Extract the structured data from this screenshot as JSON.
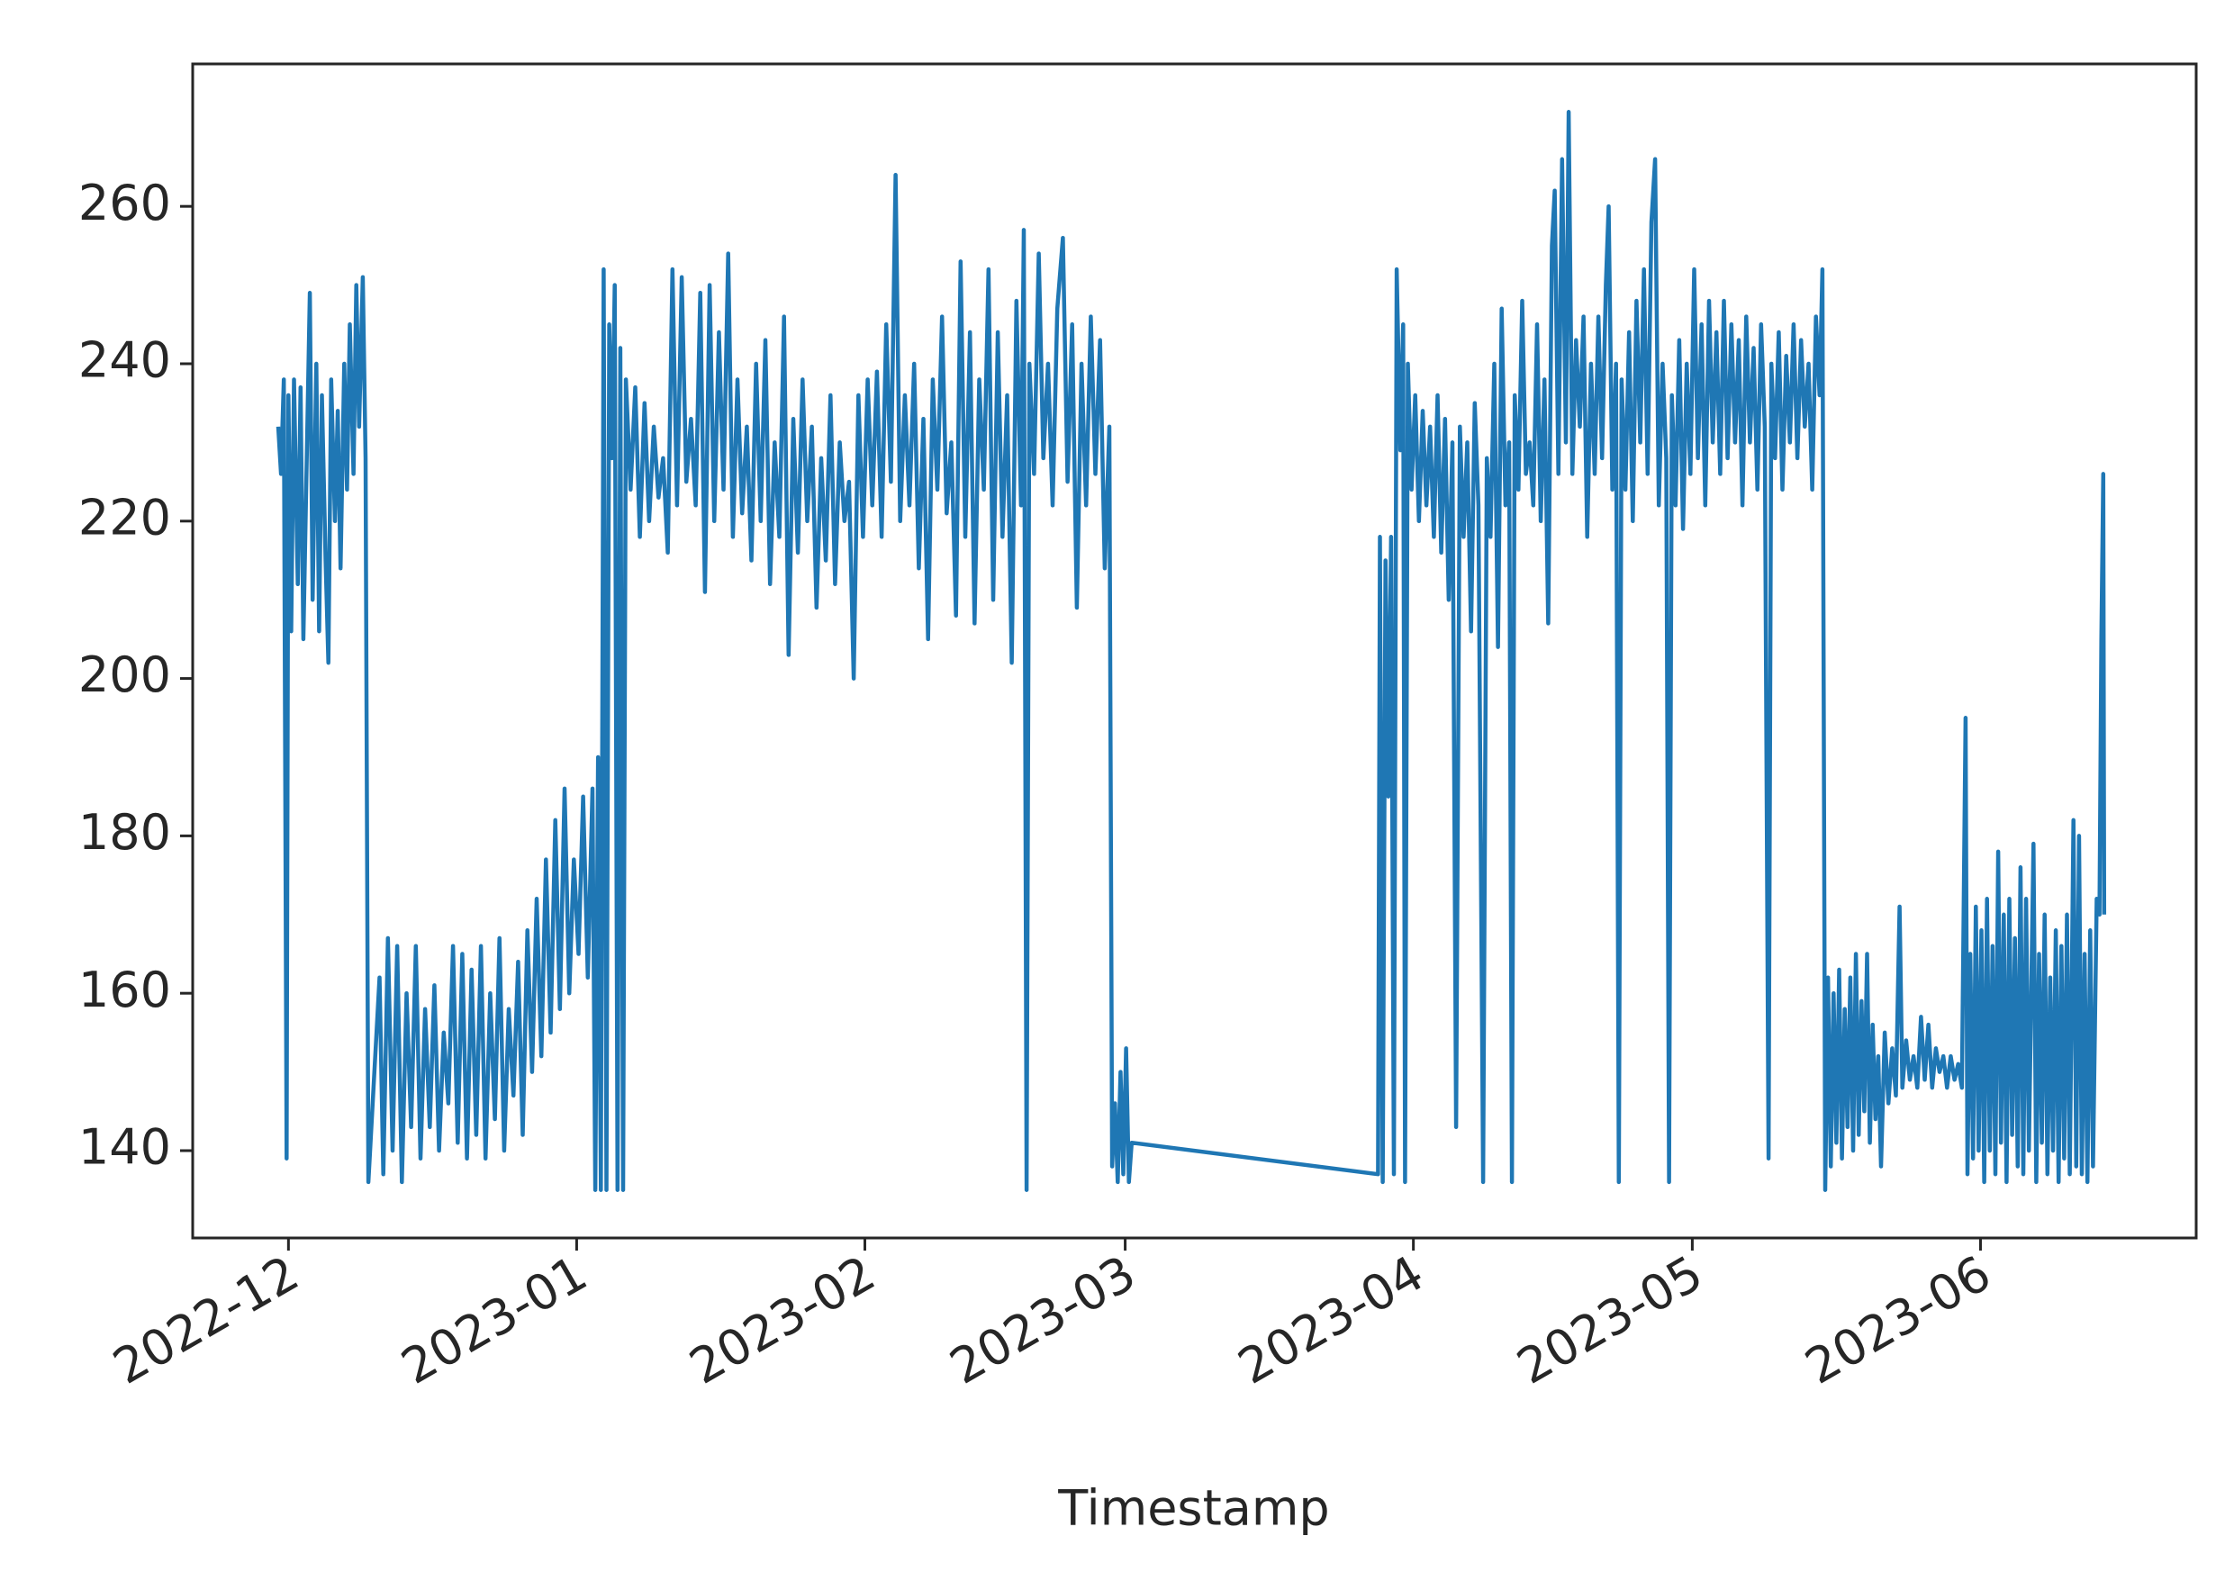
{
  "chart_data": {
    "type": "line",
    "x_label": "Timestamp",
    "color": "#1f77b4",
    "xlim": [
      19316.7,
      19532.2
    ],
    "ylim": [
      128.9,
      278.1
    ],
    "xticks": [
      {
        "value": 19327,
        "label": "2022-12"
      },
      {
        "value": 19358,
        "label": "2023-01"
      },
      {
        "value": 19389,
        "label": "2023-02"
      },
      {
        "value": 19417,
        "label": "2023-03"
      },
      {
        "value": 19448,
        "label": "2023-04"
      },
      {
        "value": 19478,
        "label": "2023-05"
      },
      {
        "value": 19509,
        "label": "2023-06"
      }
    ],
    "yticks": [
      140,
      160,
      180,
      200,
      220,
      240,
      260
    ],
    "x": [
      19325.9,
      19326.2,
      19326.5,
      19326.8,
      19327,
      19327.3,
      19327.6,
      19328,
      19328.3,
      19328.6,
      19329,
      19329.3,
      19329.6,
      19330,
      19330.3,
      19330.6,
      19331,
      19331.3,
      19331.6,
      19332,
      19332.3,
      19332.6,
      19333,
      19333.3,
      19333.6,
      19334,
      19334.3,
      19334.6,
      19335,
      19335.3,
      19335.6,
      19336.8,
      19337.2,
      19337.7,
      19338.2,
      19338.7,
      19339.2,
      19339.7,
      19340.2,
      19340.7,
      19341.2,
      19341.7,
      19342.2,
      19342.7,
      19343.2,
      19343.7,
      19344.2,
      19344.7,
      19345.2,
      19345.7,
      19346.2,
      19346.7,
      19347.2,
      19347.7,
      19348.2,
      19348.7,
      19349.2,
      19349.7,
      19350.2,
      19350.7,
      19351.2,
      19351.7,
      19352.2,
      19352.7,
      19353.2,
      19353.7,
      19354.2,
      19354.7,
      19355.2,
      19355.7,
      19356.2,
      19356.7,
      19357.2,
      19357.7,
      19358.2,
      19358.7,
      19359.2,
      19359.7,
      19360.0,
      19360.3,
      19360.6,
      19360.9,
      19361.2,
      19361.5,
      19361.8,
      19362.1,
      19362.4,
      19362.7,
      19363,
      19363.3,
      19363.8,
      19364.3,
      19364.8,
      19365.3,
      19365.8,
      19366.3,
      19366.8,
      19367.3,
      19367.8,
      19368.3,
      19368.8,
      19369.3,
      19369.8,
      19370.3,
      19370.8,
      19371.3,
      19371.8,
      19372.3,
      19372.8,
      19373.3,
      19373.8,
      19374.3,
      19374.8,
      19375.3,
      19375.8,
      19376.3,
      19376.8,
      19377.3,
      19377.8,
      19378.3,
      19378.8,
      19379.3,
      19379.8,
      19380.3,
      19380.8,
      19381.3,
      19381.8,
      19382.3,
      19382.8,
      19383.3,
      19383.8,
      19384.3,
      19384.8,
      19385.3,
      19385.8,
      19386.3,
      19386.8,
      19387.3,
      19387.8,
      19388.3,
      19388.8,
      19389.3,
      19389.8,
      19390.3,
      19390.8,
      19391.3,
      19391.8,
      19392.3,
      19392.8,
      19393.3,
      19393.8,
      19394.3,
      19394.8,
      19395.3,
      19395.8,
      19396.3,
      19396.8,
      19397.3,
      19397.8,
      19398.3,
      19398.8,
      19399.3,
      19399.8,
      19400.3,
      19400.8,
      19401.3,
      19401.8,
      19402.3,
      19402.8,
      19403.3,
      19403.8,
      19404.3,
      19404.8,
      19405.3,
      19405.8,
      19406.1,
      19406.4,
      19406.7,
      19407.2,
      19407.7,
      19408.2,
      19408.7,
      19409.2,
      19409.7,
      19410.3,
      19410.8,
      19411.3,
      19411.8,
      19412.3,
      19412.8,
      19413.3,
      19413.8,
      19414.3,
      19414.8,
      19415.3,
      19415.6,
      19415.9,
      19416.2,
      19416.5,
      19416.8,
      19417.1,
      19417.4,
      19417.7,
      19444.2,
      19444.4,
      19444.7,
      19445.0,
      19445.3,
      19445.6,
      19445.9,
      19446.2,
      19446.6,
      19446.9,
      19447.1,
      19447.4,
      19447.8,
      19448.2,
      19448.6,
      19449,
      19449.4,
      19449.8,
      19450.2,
      19450.6,
      19451,
      19451.4,
      19451.8,
      19452.2,
      19452.6,
      19453,
      19453.4,
      19453.8,
      19454.2,
      19454.6,
      19455,
      19455.5,
      19455.9,
      19456.3,
      19456.7,
      19457.1,
      19457.5,
      19457.9,
      19458.3,
      19458.6,
      19458.9,
      19459.3,
      19459.7,
      19460.1,
      19460.5,
      19460.9,
      19461.3,
      19461.7,
      19462.1,
      19462.5,
      19462.9,
      19463.2,
      19463.6,
      19464.0,
      19464.4,
      19464.7,
      19465.1,
      19465.5,
      19465.9,
      19466.3,
      19466.7,
      19467.1,
      19467.5,
      19467.9,
      19468.3,
      19468.7,
      19469.0,
      19469.4,
      19469.8,
      19470.1,
      19470.4,
      19470.8,
      19471.2,
      19471.6,
      19472,
      19472.4,
      19472.8,
      19473.2,
      19473.6,
      19474.0,
      19474.4,
      19474.8,
      19475.2,
      19475.5,
      19475.8,
      19476.2,
      19476.6,
      19477,
      19477.4,
      19477.8,
      19478.2,
      19478.6,
      19479,
      19479.4,
      19479.8,
      19480.2,
      19480.6,
      19481,
      19481.4,
      19481.8,
      19482.2,
      19482.6,
      19483,
      19483.4,
      19483.8,
      19484.2,
      19484.6,
      19485,
      19485.4,
      19485.8,
      19486.2,
      19486.5,
      19486.9,
      19487.3,
      19487.7,
      19488.1,
      19488.5,
      19488.9,
      19489.3,
      19489.7,
      19490.1,
      19490.5,
      19490.9,
      19491.3,
      19491.7,
      19492.0,
      19492.3,
      19492.6,
      19492.9,
      19493.2,
      19493.5,
      19493.8,
      19494.1,
      19494.4,
      19494.7,
      19495,
      19495.3,
      19495.6,
      19495.9,
      19496.2,
      19496.5,
      19496.8,
      19497.1,
      19497.4,
      19497.7,
      19498,
      19498.3,
      19498.7,
      19499.1,
      19499.5,
      19499.9,
      19500.3,
      19500.6,
      19501,
      19501.4,
      19501.8,
      19502.2,
      19502.6,
      19503,
      19503.4,
      19503.8,
      19504.2,
      19504.6,
      19505,
      19505.4,
      19505.8,
      19506.2,
      19506.6,
      19507,
      19507.4,
      19507.6,
      19507.9,
      19508.2,
      19508.5,
      19508.8,
      19509.1,
      19509.4,
      19509.7,
      19510,
      19510.3,
      19510.6,
      19510.9,
      19511.2,
      19511.5,
      19511.8,
      19512.1,
      19512.4,
      19512.7,
      19513,
      19513.3,
      19513.6,
      19513.9,
      19514.2,
      19514.7,
      19515,
      19515.3,
      19515.6,
      19515.9,
      19516.2,
      19516.5,
      19516.8,
      19517.1,
      19517.4,
      19517.7,
      19518,
      19518.3,
      19518.6,
      19519,
      19519.3,
      19519.6,
      19519.9,
      19520.2,
      19520.5,
      19520.8,
      19521.1,
      19521.5,
      19521.8,
      19522.0,
      19522.2,
      19522.3
    ],
    "values": [
      232,
      226,
      238,
      139,
      236,
      206,
      238,
      212,
      237,
      205,
      230,
      249,
      210,
      240,
      206,
      236,
      215,
      202,
      238,
      220,
      234,
      214,
      240,
      224,
      245,
      226,
      250,
      232,
      251,
      228,
      136,
      162,
      137,
      167,
      140,
      166,
      136,
      160,
      143,
      166,
      139,
      158,
      143,
      161,
      140,
      155,
      146,
      166,
      141,
      165,
      139,
      163,
      142,
      166,
      139,
      160,
      144,
      167,
      140,
      158,
      147,
      164,
      142,
      168,
      150,
      172,
      152,
      177,
      155,
      182,
      158,
      186,
      160,
      177,
      165,
      185,
      162,
      186,
      135,
      190,
      135,
      252,
      135,
      245,
      228,
      250,
      135,
      242,
      135,
      238,
      224,
      237,
      218,
      235,
      220,
      232,
      223,
      228,
      216,
      252,
      222,
      251,
      225,
      233,
      222,
      249,
      211,
      250,
      220,
      244,
      224,
      254,
      218,
      238,
      221,
      232,
      215,
      240,
      220,
      243,
      212,
      230,
      218,
      246,
      203,
      233,
      216,
      238,
      220,
      232,
      209,
      228,
      215,
      236,
      212,
      230,
      220,
      225,
      200,
      236,
      218,
      238,
      222,
      239,
      218,
      245,
      225,
      264,
      220,
      236,
      222,
      240,
      214,
      233,
      205,
      238,
      224,
      246,
      221,
      230,
      208,
      253,
      218,
      244,
      207,
      238,
      224,
      252,
      210,
      244,
      218,
      236,
      202,
      248,
      222,
      257,
      135,
      240,
      226,
      254,
      228,
      240,
      222,
      247,
      256,
      225,
      245,
      209,
      240,
      222,
      246,
      226,
      243,
      214,
      232,
      138,
      146,
      136,
      150,
      137,
      153,
      136,
      141,
      137,
      218,
      136,
      215,
      185,
      218,
      137,
      252,
      229,
      245,
      136,
      240,
      224,
      236,
      220,
      234,
      222,
      232,
      218,
      236,
      216,
      233,
      210,
      230,
      143,
      232,
      218,
      230,
      206,
      235,
      222,
      136,
      228,
      218,
      240,
      204,
      247,
      222,
      230,
      136,
      236,
      224,
      248,
      226,
      230,
      222,
      245,
      220,
      238,
      207,
      255,
      262,
      226,
      266,
      230,
      272,
      226,
      243,
      232,
      246,
      218,
      240,
      226,
      246,
      228,
      250,
      260,
      224,
      240,
      136,
      238,
      224,
      244,
      220,
      248,
      230,
      252,
      226,
      258,
      266,
      222,
      240,
      228,
      136,
      236,
      222,
      243,
      219,
      240,
      226,
      252,
      228,
      245,
      222,
      248,
      230,
      244,
      226,
      248,
      228,
      245,
      230,
      243,
      222,
      246,
      230,
      242,
      224,
      245,
      232,
      139,
      240,
      228,
      244,
      224,
      241,
      230,
      245,
      228,
      243,
      232,
      240,
      224,
      246,
      236,
      252,
      135,
      162,
      138,
      160,
      141,
      163,
      139,
      158,
      143,
      162,
      140,
      165,
      142,
      159,
      145,
      165,
      141,
      156,
      144,
      152,
      138,
      155,
      146,
      153,
      147,
      171,
      148,
      154,
      149,
      152,
      148,
      157,
      149,
      156,
      148,
      153,
      150,
      152,
      148,
      152,
      149,
      151,
      148,
      195,
      137,
      165,
      139,
      171,
      140,
      168,
      136,
      172,
      140,
      166,
      137,
      178,
      141,
      170,
      136,
      172,
      142,
      167,
      138,
      176,
      137,
      172,
      140,
      179,
      136,
      165,
      141,
      170,
      137,
      162,
      140,
      168,
      136,
      166,
      139,
      170,
      137,
      182,
      138,
      180,
      137,
      165,
      136,
      168,
      138,
      172,
      170,
      205,
      226,
      170
    ]
  }
}
